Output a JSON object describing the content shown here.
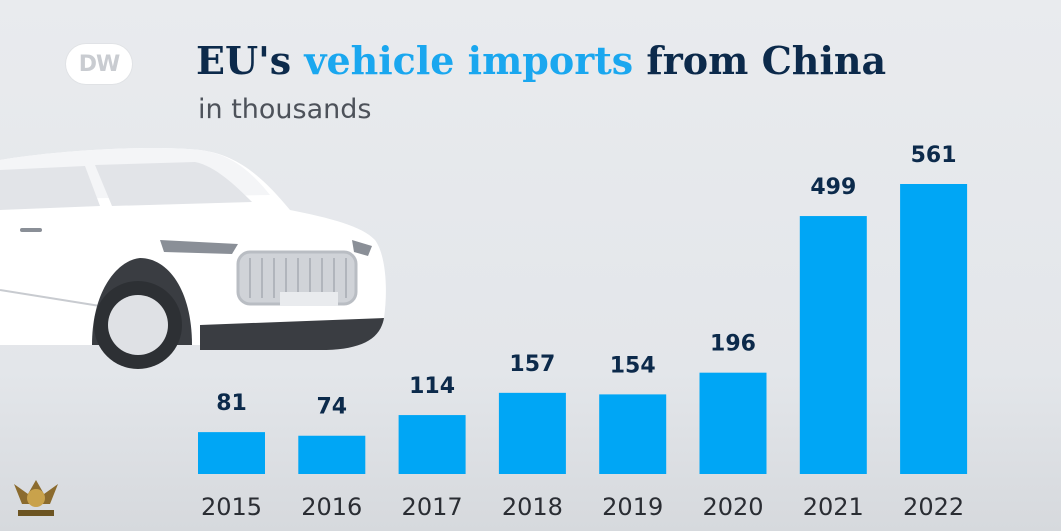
{
  "logo": {
    "text": "DW",
    "icon": "dw-logo-icon"
  },
  "header": {
    "title_part1": "EU's ",
    "title_accent": "vehicle imports",
    "title_part2": " from China",
    "subtitle": "in thousands"
  },
  "colors": {
    "bar": "#00a6f5",
    "title": "#0c2a4b",
    "accent": "#1aa7ef",
    "background": "#e9ebee"
  },
  "chart_data": {
    "type": "bar",
    "categories": [
      "2015",
      "2016",
      "2017",
      "2018",
      "2019",
      "2020",
      "2021",
      "2022"
    ],
    "values": [
      81,
      74,
      114,
      157,
      154,
      196,
      499,
      561
    ],
    "title": "EU's vehicle imports from China",
    "subtitle": "in thousands",
    "ylim": [
      0,
      600
    ],
    "grid": false,
    "legend": "none"
  },
  "watermark": {
    "icon": "forum-badge-icon"
  }
}
